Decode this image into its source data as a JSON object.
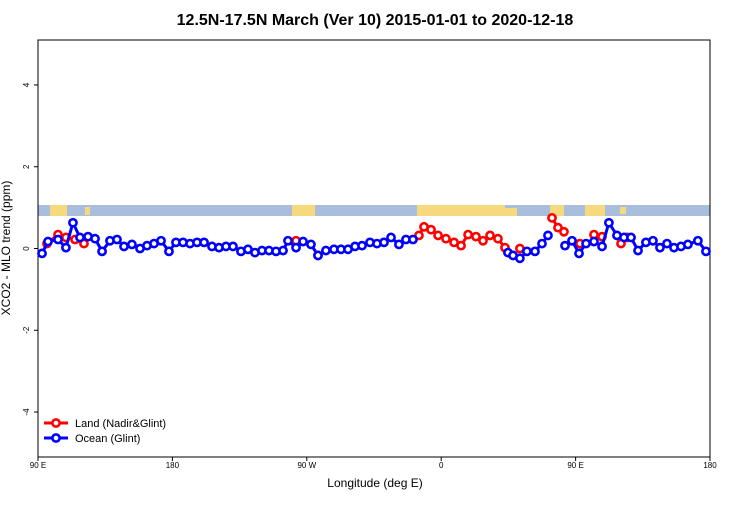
{
  "chart_data": {
    "type": "line",
    "title": "12.5N-17.5N March (Ver 10)   2015-01-01 to 2020-12-18",
    "x_label": "Longitude (deg E)",
    "y_label": "XCO2 - MLO trend (ppm)",
    "xlim": [
      90,
      540
    ],
    "ylim": [
      -5.1,
      5.1
    ],
    "xticks": [
      {
        "value": 90,
        "label": "90 E"
      },
      180,
      {
        "value": 270,
        "label": "90 W"
      },
      {
        "value": 360,
        "label": "0"
      },
      {
        "value": 450,
        "label": "90 E"
      },
      {
        "value": 540,
        "label": "180"
      }
    ],
    "yticks": [
      -4,
      -2,
      0,
      2,
      4
    ],
    "legend": "bottom-left",
    "series": [
      {
        "name": "Land (Nadir&Glint)",
        "color": "#ff0000",
        "x": [
          96.0,
          103.4,
          108.7,
          114.8,
          120.8,
          null,
          262.8,
          null,
          277.5,
          null,
          345.1,
          348.5,
          353.2,
          357.9,
          363.2,
          368.6,
          373.3,
          378.0,
          383.3,
          388.0,
          392.7,
          398.0,
          402.7,
          null,
          412.7,
          null,
          434.2,
          438.2,
          442.2,
          null,
          452.9,
          null,
          462.3,
          467.7,
          null,
          480.4,
          484.4
        ],
        "values": [
          0.12,
          0.34,
          0.27,
          0.22,
          0.12,
          null,
          0.19,
          null,
          -0.17,
          null,
          0.32,
          0.53,
          0.46,
          0.32,
          0.24,
          0.15,
          0.07,
          0.34,
          0.29,
          0.19,
          0.32,
          0.24,
          0.02,
          null,
          0,
          null,
          0.75,
          0.51,
          0.41,
          null,
          0.12,
          null,
          0.34,
          0.29,
          null,
          0.12,
          0.27
        ]
      },
      {
        "name": "Ocean (Glint)",
        "color": "#0000ff",
        "x": [
          92.7,
          96.7,
          103.4,
          108.7,
          113.4,
          118.1,
          123.5,
          128.2,
          132.9,
          138.2,
          142.9,
          147.6,
          152.9,
          158.3,
          163.0,
          167.7,
          172.4,
          177.7,
          182.4,
          187.1,
          191.8,
          196.5,
          201.2,
          206.5,
          211.2,
          215.9,
          220.6,
          225.9,
          230.6,
          235.3,
          240.0,
          244.7,
          249.4,
          254.1,
          257.4,
          262.8,
          267.5,
          272.8,
          277.5,
          282.8,
          288.2,
          292.9,
          297.6,
          302.3,
          307.0,
          312.3,
          317.0,
          321.7,
          326.4,
          331.7,
          336.4,
          341.1,
          null,
          404.7,
          408.1,
          412.7,
          417.4,
          422.8,
          427.5,
          431.5,
          null,
          442.9,
          447.6,
          452.3,
          457.0,
          462.3,
          467.7,
          472.3,
          477.7,
          482.4,
          487.1,
          491.8,
          497.1,
          501.8,
          506.5,
          511.2,
          515.9,
          520.6,
          525.2,
          531.9,
          537.3
        ],
        "values": [
          -0.12,
          0.17,
          0.22,
          0.02,
          0.63,
          0.27,
          0.29,
          0.24,
          -0.07,
          0.19,
          0.22,
          0.05,
          0.1,
          0.0,
          0.07,
          0.12,
          0.19,
          -0.07,
          0.15,
          0.15,
          0.12,
          0.15,
          0.15,
          0.05,
          0.02,
          0.05,
          0.05,
          -0.07,
          -0.02,
          -0.1,
          -0.05,
          -0.05,
          -0.07,
          -0.05,
          0.19,
          0.02,
          0.17,
          0.1,
          -0.17,
          -0.05,
          -0.02,
          -0.02,
          -0.02,
          0.05,
          0.07,
          0.15,
          0.12,
          0.15,
          0.27,
          0.1,
          0.22,
          0.22,
          null,
          -0.1,
          -0.17,
          -0.24,
          -0.07,
          -0.07,
          0.12,
          0.32,
          null,
          0.07,
          0.19,
          -0.12,
          0.12,
          0.17,
          0.05,
          0.63,
          0.32,
          0.27,
          0.27,
          -0.05,
          0.15,
          0.19,
          0.02,
          0.12,
          0.02,
          0.05,
          0.1,
          0.19,
          -0.07
        ]
      }
    ]
  }
}
